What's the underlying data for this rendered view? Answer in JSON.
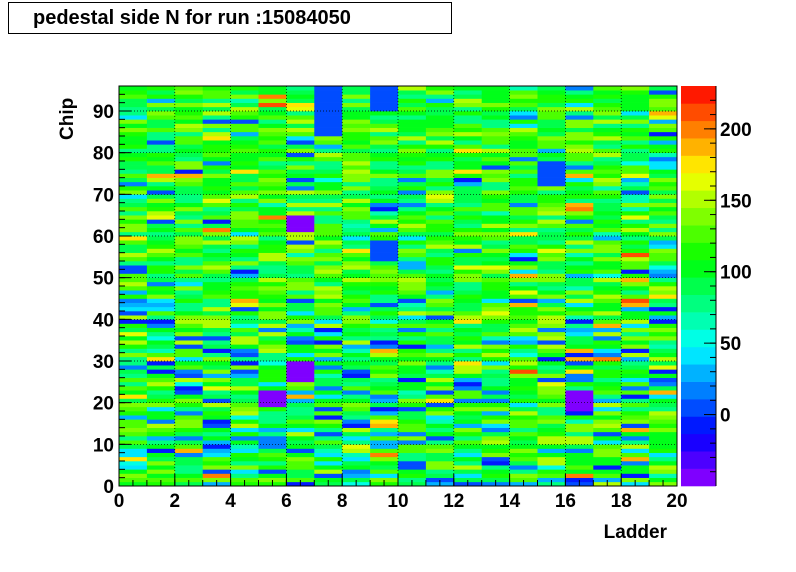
{
  "chart_data": {
    "type": "heatmap",
    "title": "pedestal side N for run :15084050",
    "xlabel": "Ladder",
    "ylabel": "Chip",
    "xlim": [
      0,
      20
    ],
    "ylim": [
      0,
      96
    ],
    "zlim": [
      -50,
      230
    ],
    "x_ticks": [
      "0",
      "2",
      "4",
      "6",
      "8",
      "10",
      "12",
      "14",
      "16",
      "18",
      "20"
    ],
    "y_ticks": [
      "0",
      "10",
      "20",
      "30",
      "40",
      "50",
      "60",
      "70",
      "80",
      "90"
    ],
    "z_ticks": [
      "0",
      "50",
      "100",
      "150",
      "200"
    ],
    "x_bins": 20,
    "y_bins": 96,
    "grid": true,
    "palette": [
      "#7f00ff",
      "#4c00ff",
      "#1900ff",
      "#0019ff",
      "#004cff",
      "#007fff",
      "#00b2ff",
      "#00e5ff",
      "#00ffe5",
      "#00ffb2",
      "#00ff7f",
      "#00ff4c",
      "#00ff19",
      "#19ff00",
      "#4cff00",
      "#7fff00",
      "#b2ff00",
      "#e5ff00",
      "#ffe500",
      "#ffb200",
      "#ff7f00",
      "#ff4c00",
      "#ff1900"
    ],
    "description_of_values": "per-bin pedestal values are mostly 60-150 with scattered low (blue/violet) and high (yellow/red) bins",
    "notable_blocks": [
      {
        "ladder": 7,
        "chip_from": 84,
        "chip_to": 96,
        "value": 0
      },
      {
        "ladder": 9,
        "chip_from": 90,
        "chip_to": 96,
        "value": 0
      },
      {
        "ladder": 15,
        "chip_from": 72,
        "chip_to": 78,
        "value": 0
      },
      {
        "ladder": 6,
        "chip_from": 61,
        "chip_to": 65,
        "value": -40
      },
      {
        "ladder": 9,
        "chip_from": 54,
        "chip_to": 59,
        "value": 0
      },
      {
        "ladder": 6,
        "chip_from": 25,
        "chip_to": 30,
        "value": -40
      },
      {
        "ladder": 5,
        "chip_from": 19,
        "chip_to": 23,
        "value": -40
      },
      {
        "ladder": 16,
        "chip_from": 18,
        "chip_to": 23,
        "value": -40
      }
    ]
  }
}
